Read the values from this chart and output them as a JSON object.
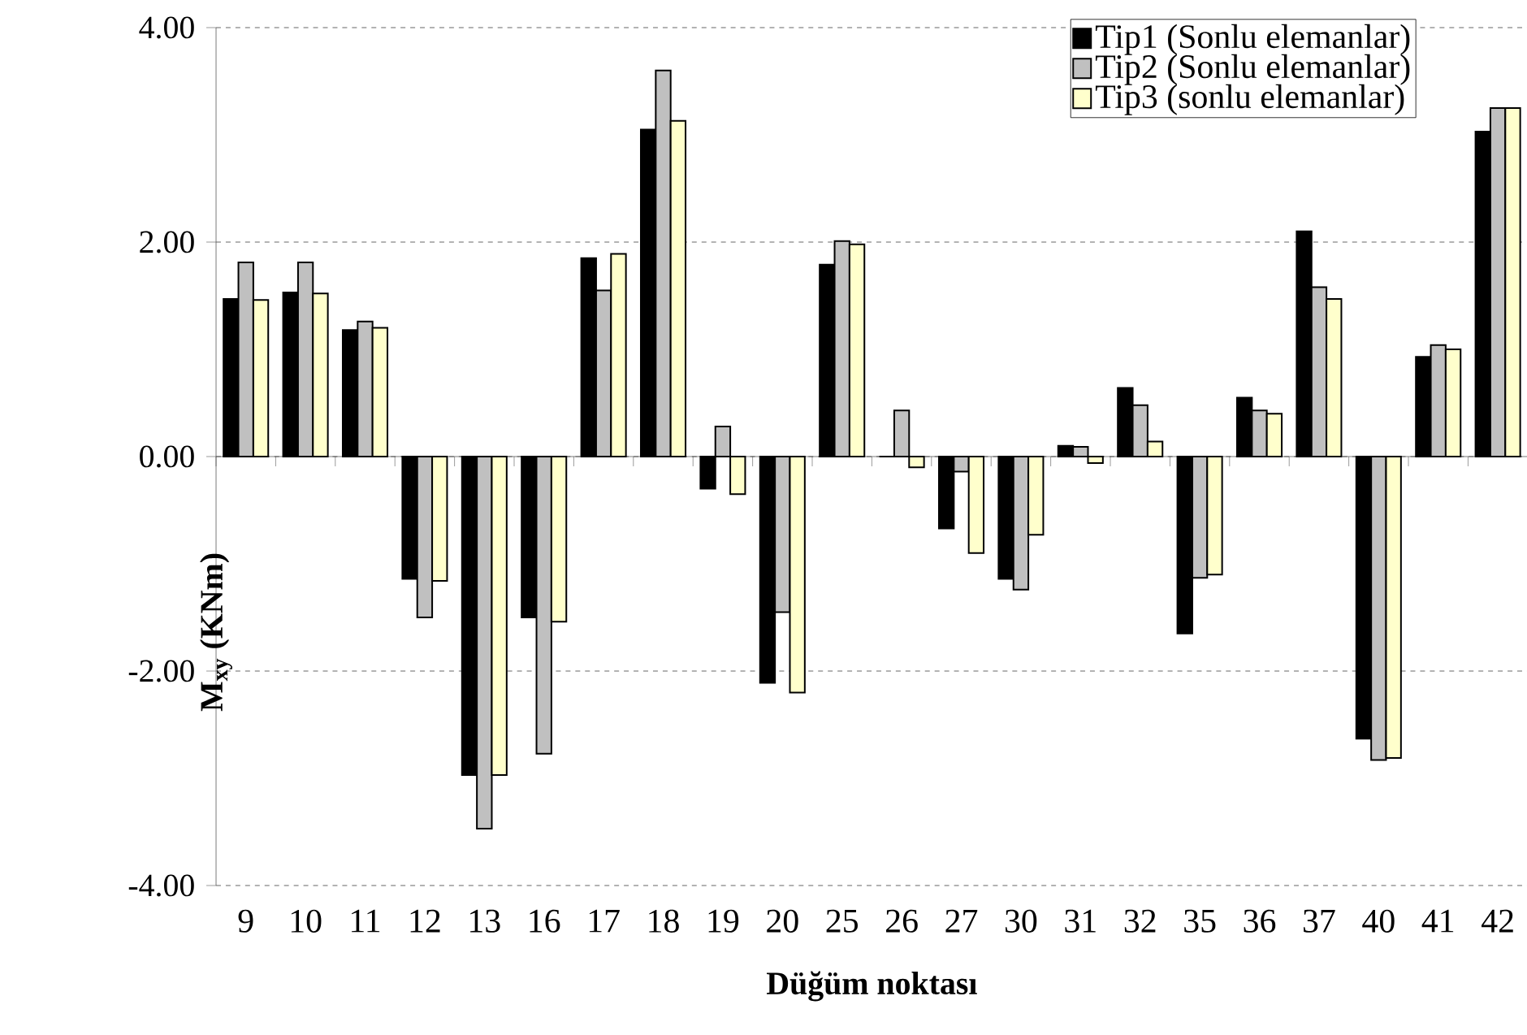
{
  "chart_data": {
    "type": "bar",
    "xlabel": "Düğüm noktası",
    "ylabel": "M$_{xy}$ (KNm)",
    "categories": [
      "9",
      "10",
      "11",
      "12",
      "13",
      "16",
      "17",
      "18",
      "19",
      "20",
      "25",
      "26",
      "27",
      "30",
      "31",
      "32",
      "35",
      "36",
      "37",
      "40",
      "41",
      "42"
    ],
    "series": [
      {
        "name": "Tip1 (Sonlu elemanlar)",
        "color": "#000000",
        "values": [
          1.47,
          1.53,
          1.18,
          -1.14,
          -2.97,
          -1.5,
          1.85,
          3.05,
          -0.3,
          -2.11,
          1.79,
          0,
          -0.67,
          -1.14,
          0.1,
          0.64,
          -1.65,
          0.55,
          2.1,
          -2.63,
          0.93,
          3.03
        ]
      },
      {
        "name": "Tip2 (Sonlu elemanlar)",
        "color": "#c0c0c0",
        "values": [
          1.81,
          1.81,
          1.26,
          -1.5,
          -3.47,
          -2.77,
          1.55,
          3.6,
          0.28,
          -1.45,
          2.01,
          0.43,
          -0.14,
          -1.24,
          0.09,
          0.48,
          -1.13,
          0.43,
          1.58,
          -2.83,
          1.04,
          3.25
        ]
      },
      {
        "name": "Tip3 (sonlu elemanlar)",
        "color": "#ffffcc",
        "values": [
          1.46,
          1.52,
          1.2,
          -1.16,
          -2.97,
          -1.54,
          1.89,
          3.13,
          -0.35,
          -2.2,
          1.98,
          -0.1,
          -0.9,
          -0.73,
          -0.06,
          0.14,
          -1.1,
          0.4,
          1.47,
          -2.81,
          1.0,
          3.25
        ]
      }
    ],
    "ylim": [
      -4,
      4
    ],
    "yticks": [
      {
        "value": -4,
        "label": "-4.00"
      },
      {
        "value": -2,
        "label": "-2.00"
      },
      {
        "value": 0,
        "label": "0.00"
      },
      {
        "value": 2,
        "label": "2.00"
      },
      {
        "value": 4,
        "label": "4.00"
      }
    ],
    "grid": "y",
    "legend": "top right"
  }
}
